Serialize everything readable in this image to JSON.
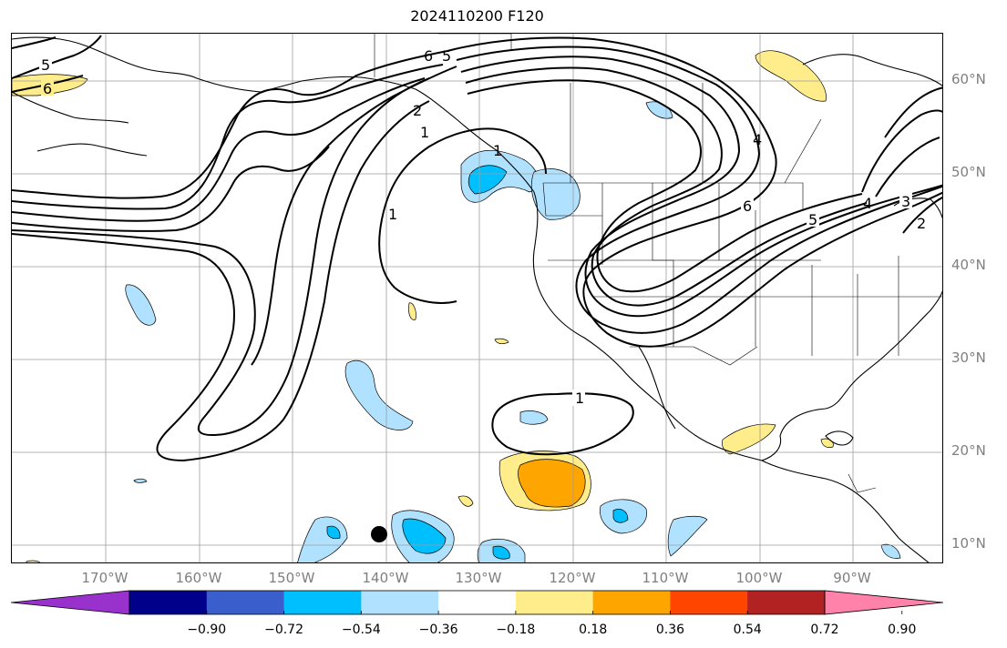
{
  "title": "2024110200 F120",
  "lat_labels": [
    "60°N",
    "50°N",
    "40°N",
    "30°N",
    "20°N",
    "10°N"
  ],
  "lon_labels": [
    "170°W",
    "160°W",
    "150°W",
    "140°W",
    "130°W",
    "120°W",
    "110°W",
    "100°W",
    "90°W"
  ],
  "contour_labels": [
    "5",
    "6",
    "6",
    "5",
    "2",
    "1",
    "1",
    "1",
    "1",
    "6",
    "5",
    "4",
    "3",
    "4",
    "2"
  ],
  "colorbar": {
    "ticks": [
      "−0.90",
      "−0.72",
      "−0.54",
      "−0.36",
      "−0.18",
      "0.18",
      "0.36",
      "0.54",
      "0.72",
      "0.90"
    ],
    "colors": [
      "#9932cc",
      "#00008b",
      "#3a5fcd",
      "#00bfff",
      "#b0e2ff",
      "#ffffff",
      "#ffec8b",
      "#ffa500",
      "#ff4500",
      "#b22222",
      "#ff82ab"
    ]
  },
  "map_dot_icon": "black-circle-marker"
}
